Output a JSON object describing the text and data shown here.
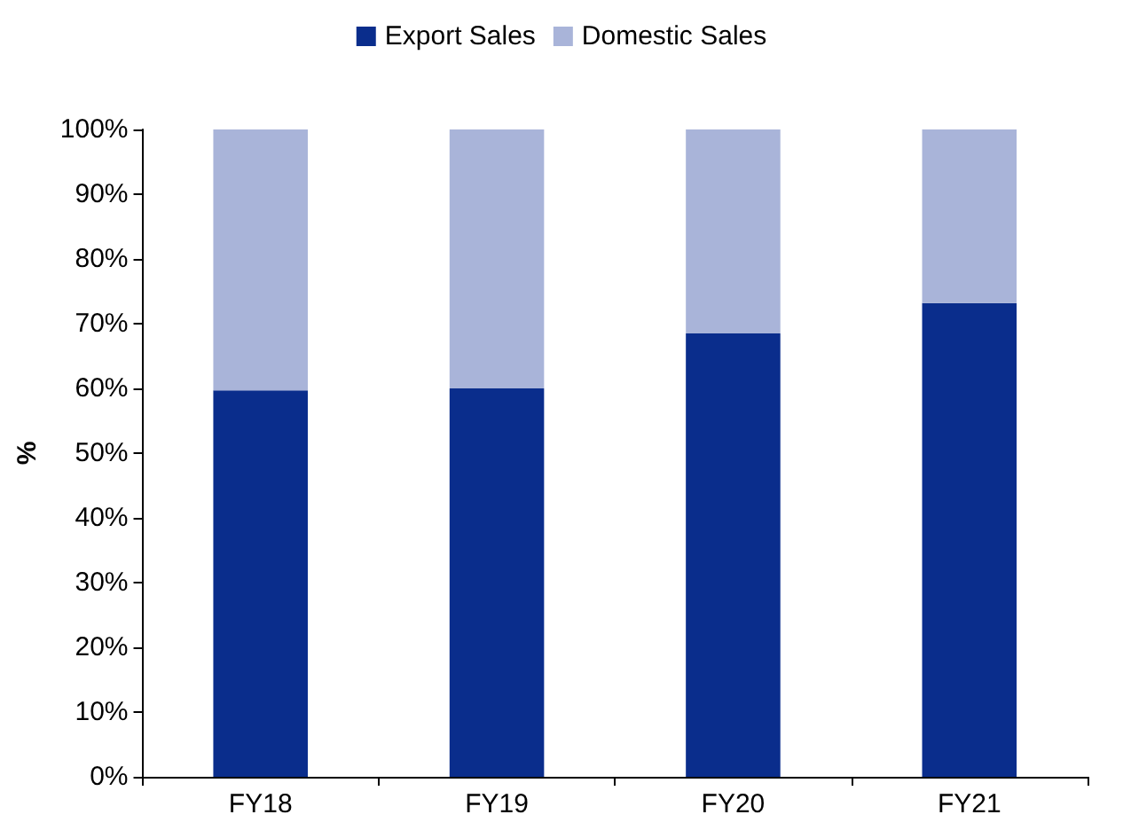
{
  "chart_data": {
    "type": "bar",
    "stacked": true,
    "ylabel": "%",
    "categories": [
      "FY18",
      "FY19",
      "FY20",
      "FY21"
    ],
    "series": [
      {
        "name": "Export Sales",
        "color": "#0a2d8c",
        "values": [
          59.7,
          60,
          68.5,
          73.2
        ]
      },
      {
        "name": "Domestic Sales",
        "color": "#a9b4d9",
        "values": [
          40.3,
          40,
          31.5,
          26.8
        ]
      }
    ],
    "ylim": [
      0,
      100
    ],
    "yticks": [
      {
        "value": 0,
        "label": "0%"
      },
      {
        "value": 10,
        "label": "10%"
      },
      {
        "value": 20,
        "label": "20%"
      },
      {
        "value": 30,
        "label": "30%"
      },
      {
        "value": 40,
        "label": "40%"
      },
      {
        "value": 50,
        "label": "50%"
      },
      {
        "value": 60,
        "label": "60%"
      },
      {
        "value": 70,
        "label": "70%"
      },
      {
        "value": 80,
        "label": "80%"
      },
      {
        "value": 90,
        "label": "90%"
      },
      {
        "value": 100,
        "label": "100%"
      }
    ],
    "grid": false,
    "legend": "top"
  }
}
